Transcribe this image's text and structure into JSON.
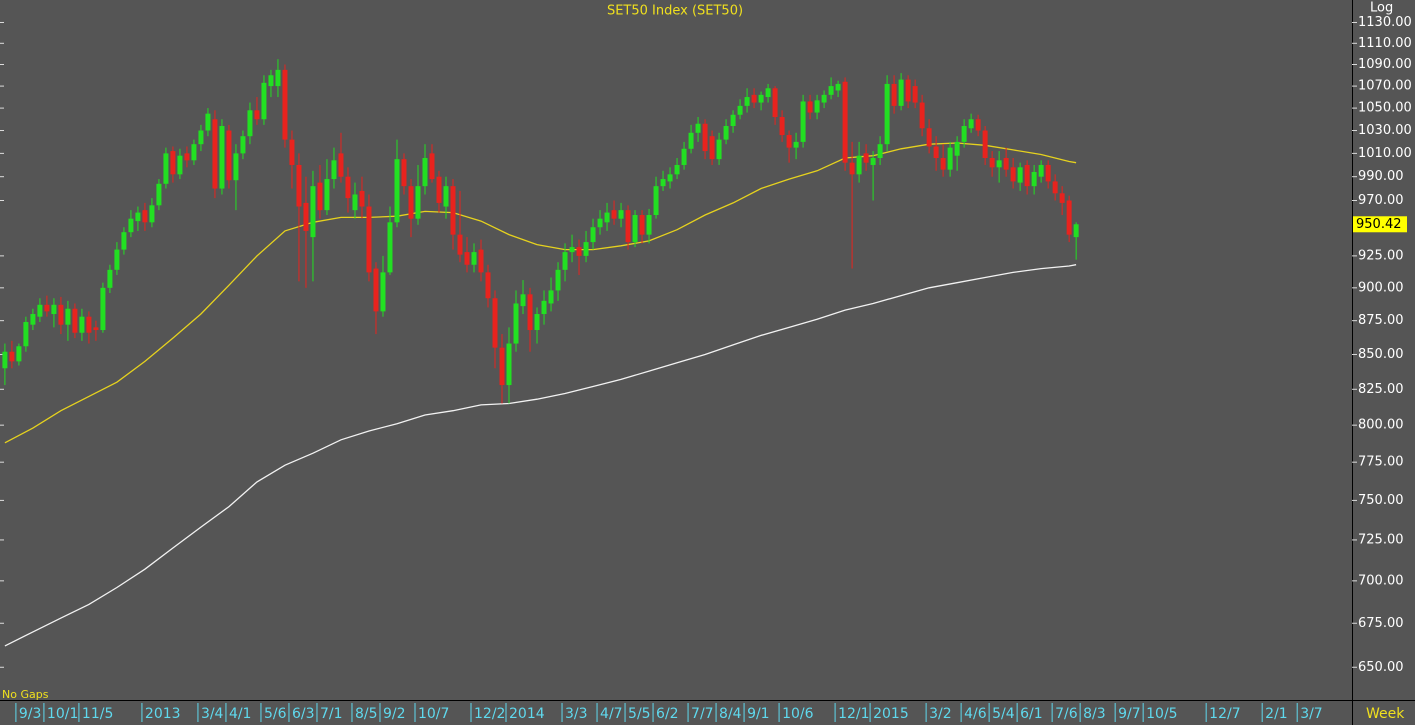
{
  "chart_data": {
    "type": "candlestick",
    "title": "SET50 Index (SET50)",
    "scale": "log",
    "y_label": "Log",
    "x_label": "Week",
    "note": "No Gaps",
    "up_color": "#22e022",
    "down_color": "#e8231e",
    "xlim": [
      -0.7,
      192.4
    ],
    "xticks": [
      {
        "value": 2,
        "label": "9/3"
      },
      {
        "value": 6,
        "label": "10/1"
      },
      {
        "value": 11,
        "label": "11/5"
      },
      {
        "value": 20,
        "label": "2013"
      },
      {
        "value": 28,
        "label": "3/4"
      },
      {
        "value": 32,
        "label": "4/1"
      },
      {
        "value": 37,
        "label": "5/6"
      },
      {
        "value": 41,
        "label": "6/3"
      },
      {
        "value": 45,
        "label": "7/1"
      },
      {
        "value": 50,
        "label": "8/5"
      },
      {
        "value": 54,
        "label": "9/2"
      },
      {
        "value": 59,
        "label": "10/7"
      },
      {
        "value": 67,
        "label": "12/2"
      },
      {
        "value": 72,
        "label": "2014"
      },
      {
        "value": 80,
        "label": "3/3"
      },
      {
        "value": 85,
        "label": "4/7"
      },
      {
        "value": 89,
        "label": "5/5"
      },
      {
        "value": 93,
        "label": "6/2"
      },
      {
        "value": 98,
        "label": "7/7"
      },
      {
        "value": 102,
        "label": "8/4"
      },
      {
        "value": 106,
        "label": "9/1"
      },
      {
        "value": 111,
        "label": "10/6"
      },
      {
        "value": 119,
        "label": "12/1"
      },
      {
        "value": 124,
        "label": "2015"
      },
      {
        "value": 132,
        "label": "3/2"
      },
      {
        "value": 137,
        "label": "4/6"
      },
      {
        "value": 141,
        "label": "5/4"
      },
      {
        "value": 145,
        "label": "6/1"
      },
      {
        "value": 150,
        "label": "7/6"
      },
      {
        "value": 154,
        "label": "8/3"
      },
      {
        "value": 159,
        "label": "9/7"
      },
      {
        "value": 163,
        "label": "10/5"
      },
      {
        "value": 172,
        "label": "12/7"
      },
      {
        "value": 180,
        "label": "2/1"
      },
      {
        "value": 185,
        "label": "3/7"
      }
    ],
    "ylim": [
      632,
      1152
    ],
    "yticks": [
      {
        "value": 650,
        "label": "650.00"
      },
      {
        "value": 675,
        "label": "675.00"
      },
      {
        "value": 700,
        "label": "700.00"
      },
      {
        "value": 725,
        "label": "725.00"
      },
      {
        "value": 750,
        "label": "750.00"
      },
      {
        "value": 775,
        "label": "775.00"
      },
      {
        "value": 800,
        "label": "800.00"
      },
      {
        "value": 825,
        "label": "825.00"
      },
      {
        "value": 850,
        "label": "850.00"
      },
      {
        "value": 875,
        "label": "875.00"
      },
      {
        "value": 900,
        "label": "900.00"
      },
      {
        "value": 925,
        "label": "925.00"
      },
      {
        "value": 970,
        "label": "970.00"
      },
      {
        "value": 990,
        "label": "990.00"
      },
      {
        "value": 1010,
        "label": "1010.00"
      },
      {
        "value": 1030,
        "label": "1030.00"
      },
      {
        "value": 1050,
        "label": "1050.00"
      },
      {
        "value": 1070,
        "label": "1070.00"
      },
      {
        "value": 1090,
        "label": "1090.00"
      },
      {
        "value": 1110,
        "label": "1110.00"
      },
      {
        "value": 1130,
        "label": "1130.00"
      }
    ],
    "open": [
      840,
      852,
      845,
      856,
      872,
      878,
      887,
      880,
      887,
      872,
      884,
      866,
      878,
      870,
      868,
      900,
      914,
      930,
      944,
      953,
      962,
      952,
      966,
      984,
      1012,
      992,
      1010,
      1004,
      1018,
      1030,
      1040,
      980,
      1030,
      987,
      1010,
      1025,
      1048,
      1040,
      1070,
      1070,
      1085,
      1022,
      1000,
      968,
      940,
      985,
      962,
      988,
      1010,
      990,
      962,
      978,
      965,
      915,
      882,
      912,
      952,
      1005,
      982,
      955,
      982,
      1010,
      990,
      965,
      982,
      942,
      928,
      918,
      930,
      912,
      892,
      855,
      828,
      858,
      886,
      895,
      868,
      880,
      888,
      898,
      914,
      928,
      932,
      925,
      936,
      948,
      952,
      962,
      955,
      962,
      936,
      958,
      942,
      958,
      982,
      986,
      992,
      1000,
      1014,
      1028,
      1036,
      1025,
      1005,
      1022,
      1034,
      1044,
      1052,
      1062,
      1055,
      1060,
      1068,
      1042,
      1026,
      1015,
      1020,
      1056,
      1046,
      1055,
      1062,
      1066,
      1074,
      1002,
      992,
      1010,
      1000,
      1006,
      1018,
      1072,
      1052,
      1076,
      1070,
      1055,
      1032,
      1016,
      1006,
      996,
      1008,
      1020,
      1032,
      1040,
      1030,
      1006,
      998,
      1006,
      998,
      985,
      1000,
      982,
      990,
      1000,
      986,
      976,
      970,
      940
    ],
    "high": [
      858,
      860,
      858,
      878,
      884,
      892,
      894,
      892,
      893,
      890,
      888,
      884,
      882,
      875,
      904,
      918,
      936,
      948,
      962,
      965,
      968,
      972,
      988,
      1015,
      1016,
      1014,
      1016,
      1022,
      1035,
      1050,
      1048,
      1040,
      1035,
      1018,
      1030,
      1055,
      1060,
      1080,
      1085,
      1095,
      1090,
      1030,
      1010,
      990,
      995,
      1000,
      1005,
      1015,
      1028,
      998,
      985,
      990,
      975,
      920,
      925,
      965,
      1022,
      1010,
      988,
      1000,
      1018,
      1018,
      995,
      990,
      988,
      978,
      940,
      935,
      938,
      918,
      898,
      865,
      870,
      898,
      906,
      900,
      885,
      898,
      908,
      920,
      935,
      942,
      938,
      945,
      955,
      962,
      968,
      970,
      968,
      966,
      962,
      962,
      963,
      990,
      995,
      998,
      1006,
      1020,
      1035,
      1042,
      1040,
      1030,
      1028,
      1040,
      1048,
      1058,
      1068,
      1068,
      1065,
      1072,
      1070,
      1048,
      1030,
      1028,
      1062,
      1062,
      1062,
      1066,
      1078,
      1075,
      1078,
      1020,
      1020,
      1018,
      1012,
      1025,
      1080,
      1080,
      1082,
      1080,
      1076,
      1062,
      1040,
      1025,
      1018,
      1020,
      1025,
      1040,
      1045,
      1044,
      1034,
      1012,
      1012,
      1015,
      1006,
      1002,
      1004,
      1000,
      1004,
      1004,
      992,
      982,
      974,
      952
    ],
    "low": [
      828,
      840,
      842,
      852,
      868,
      874,
      878,
      870,
      865,
      860,
      862,
      860,
      858,
      860,
      866,
      896,
      910,
      926,
      940,
      945,
      945,
      948,
      962,
      980,
      985,
      988,
      998,
      1000,
      1012,
      1025,
      972,
      975,
      980,
      962,
      1005,
      1018,
      1035,
      1035,
      1060,
      1060,
      1015,
      980,
      905,
      900,
      905,
      955,
      958,
      980,
      985,
      960,
      955,
      955,
      905,
      865,
      878,
      910,
      948,
      975,
      940,
      950,
      975,
      985,
      960,
      955,
      930,
      920,
      912,
      912,
      905,
      885,
      840,
      815,
      815,
      852,
      880,
      852,
      858,
      872,
      882,
      890,
      905,
      920,
      910,
      920,
      930,
      942,
      945,
      950,
      948,
      930,
      932,
      935,
      935,
      955,
      978,
      980,
      988,
      996,
      1010,
      1020,
      1005,
      1000,
      1000,
      1018,
      1028,
      1040,
      1046,
      1050,
      1048,
      1055,
      1035,
      1020,
      1002,
      1005,
      1015,
      1040,
      1040,
      1050,
      1058,
      1060,
      995,
      915,
      985,
      995,
      970,
      1000,
      1012,
      1045,
      1048,
      1050,
      1050,
      1025,
      1010,
      995,
      990,
      990,
      995,
      1015,
      1028,
      1025,
      1000,
      990,
      985,
      990,
      980,
      978,
      975,
      975,
      985,
      980,
      970,
      958,
      936,
      922
    ],
    "close": [
      852,
      845,
      856,
      874,
      880,
      887,
      882,
      887,
      872,
      884,
      866,
      878,
      866,
      868,
      900,
      914,
      930,
      944,
      955,
      960,
      952,
      966,
      984,
      1010,
      992,
      1008,
      1004,
      1018,
      1030,
      1045,
      980,
      1034,
      987,
      1010,
      1025,
      1048,
      1040,
      1073,
      1080,
      1085,
      1022,
      1000,
      965,
      945,
      982,
      962,
      988,
      1004,
      990,
      972,
      975,
      965,
      912,
      882,
      912,
      952,
      1005,
      982,
      955,
      982,
      1006,
      988,
      968,
      982,
      942,
      926,
      918,
      928,
      912,
      892,
      855,
      828,
      858,
      888,
      895,
      868,
      880,
      890,
      898,
      914,
      928,
      932,
      925,
      936,
      948,
      955,
      960,
      955,
      962,
      936,
      958,
      942,
      958,
      982,
      988,
      992,
      1000,
      1014,
      1028,
      1036,
      1012,
      1005,
      1022,
      1034,
      1044,
      1052,
      1060,
      1055,
      1062,
      1068,
      1042,
      1026,
      1015,
      1020,
      1056,
      1046,
      1057,
      1062,
      1070,
      1072,
      1002,
      992,
      1008,
      1002,
      1006,
      1018,
      1072,
      1052,
      1076,
      1056,
      1055,
      1032,
      1016,
      1006,
      996,
      1015,
      1020,
      1034,
      1040,
      1030,
      1006,
      998,
      1004,
      996,
      986,
      998,
      982,
      994,
      1000,
      986,
      976,
      968,
      942,
      950.42
    ],
    "series": [
      {
        "color": "#e6d21e",
        "x": [
          0,
          4,
          8,
          12,
          16,
          20,
          24,
          28,
          32,
          36,
          40,
          44,
          48,
          52,
          56,
          60,
          64,
          68,
          72,
          76,
          80,
          84,
          88,
          92,
          96,
          100,
          104,
          108,
          112,
          116,
          120,
          124,
          128,
          132,
          136,
          140,
          144,
          148,
          152,
          153
        ],
        "values": [
          788,
          798,
          810,
          820,
          830,
          845,
          862,
          880,
          902,
          925,
          945,
          952,
          956,
          956,
          957,
          961,
          960,
          953,
          942,
          934,
          930,
          930,
          933,
          937,
          946,
          958,
          968,
          980,
          988,
          995,
          1006,
          1008,
          1014,
          1018,
          1019,
          1017,
          1013,
          1009,
          1003,
          1002
        ]
      },
      {
        "color": "#f2f2f2",
        "x": [
          0,
          4,
          8,
          12,
          16,
          20,
          24,
          28,
          32,
          36,
          40,
          44,
          48,
          52,
          56,
          60,
          64,
          68,
          72,
          76,
          80,
          84,
          88,
          92,
          96,
          100,
          104,
          108,
          112,
          116,
          120,
          124,
          128,
          132,
          136,
          140,
          144,
          148,
          152,
          153
        ],
        "values": [
          662,
          670,
          678,
          686,
          696,
          707,
          720,
          733,
          746,
          762,
          773,
          781,
          790,
          796,
          801,
          807,
          810,
          814,
          815,
          818,
          822,
          827,
          832,
          838,
          844,
          850,
          857,
          864,
          870,
          876,
          883,
          888,
          894,
          900,
          904,
          908,
          912,
          915,
          917,
          918
        ]
      }
    ]
  }
}
